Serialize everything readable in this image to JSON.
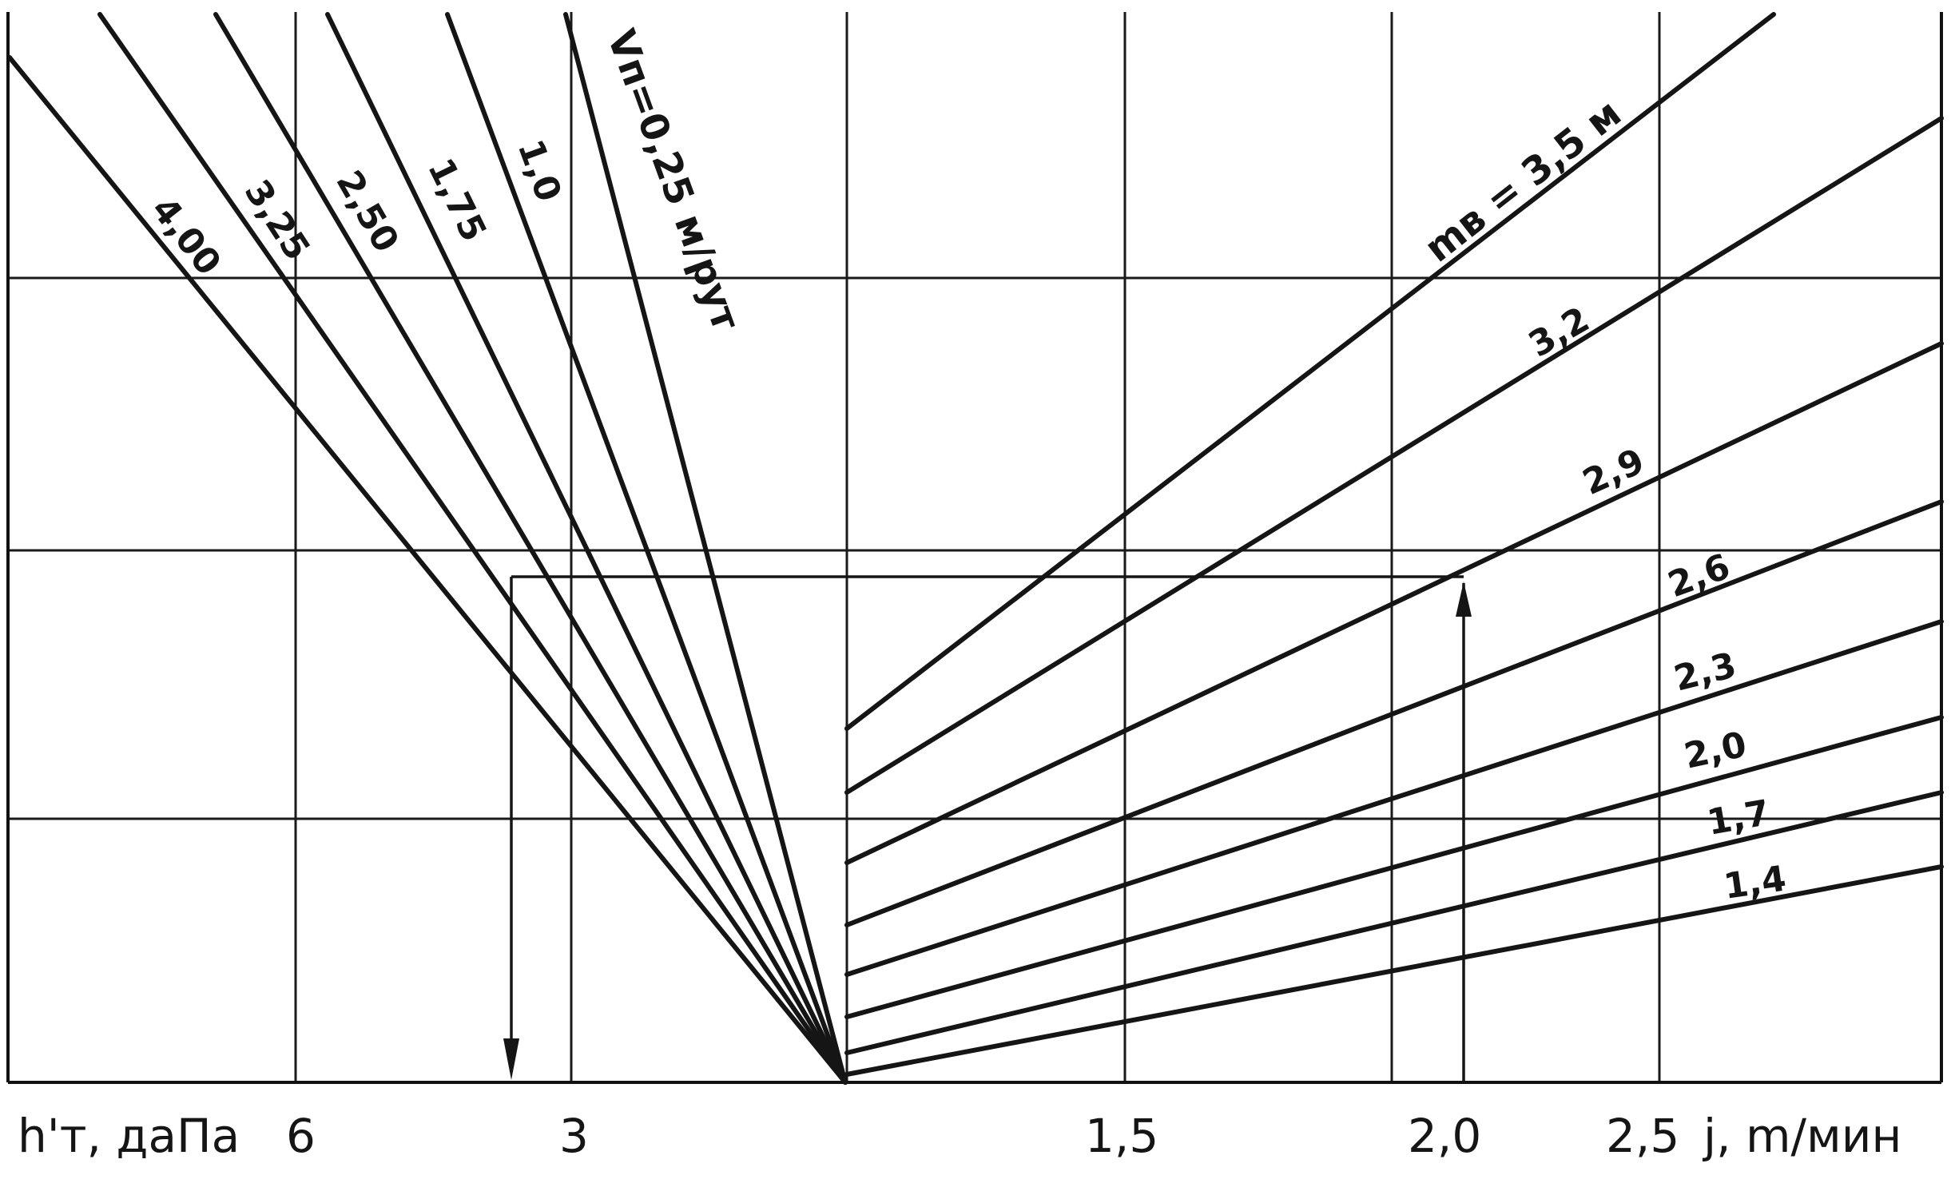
{
  "chart_data": {
    "type": "line",
    "left_panel": {
      "xlabel": "h'т, даПа",
      "x_ticks": [
        "6",
        "3"
      ],
      "parameter_label": "Vп=0,25 м/рут",
      "series": [
        {
          "name": "Vп=0,25 м/рут"
        },
        {
          "name": "1,0"
        },
        {
          "name": "1,75"
        },
        {
          "name": "2,50"
        },
        {
          "name": "3,25"
        },
        {
          "name": "4,00"
        }
      ]
    },
    "right_panel": {
      "xlabel": "j, m/мин",
      "x_ticks": [
        "1,5",
        "2,0",
        "2,5"
      ],
      "parameter_label": "mв = 3,5 м",
      "series": [
        {
          "name": "mв = 3,5 м"
        },
        {
          "name": "3,2"
        },
        {
          "name": "2,9"
        },
        {
          "name": "2,6"
        },
        {
          "name": "2,3"
        },
        {
          "name": "2,0"
        },
        {
          "name": "1,7"
        },
        {
          "name": "1,4"
        }
      ]
    },
    "example_path": {
      "j": 2.0,
      "h_t": 3.4
    },
    "grid": true
  }
}
